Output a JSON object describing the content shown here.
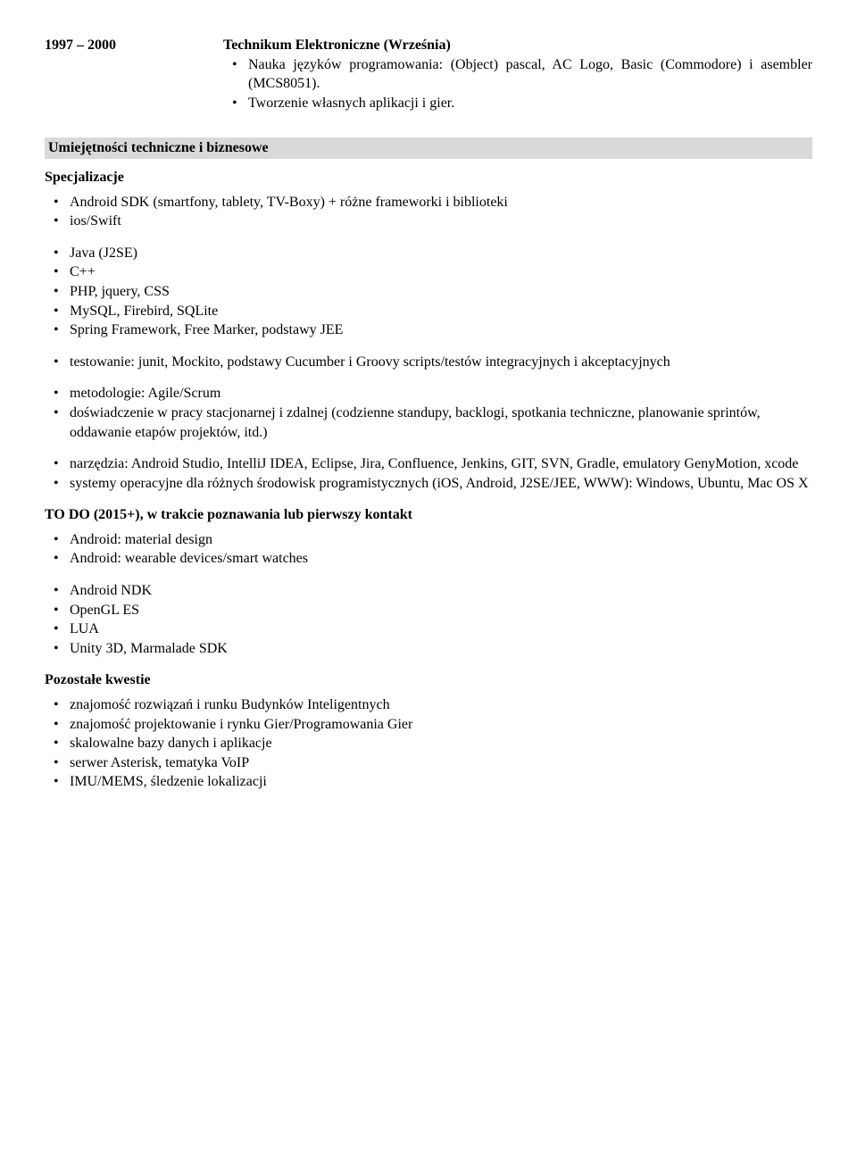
{
  "education": {
    "years": "1997 – 2000",
    "school": "Technikum Elektroniczne (Września)",
    "items": [
      "Nauka języków programowania: (Object) pascal, AC Logo, Basic (Commodore) i asembler (MCS8051).",
      "Tworzenie własnych aplikacji i gier."
    ]
  },
  "section_skills_header": "Umiejętności techniczne i biznesowe",
  "spec_header": "Specjalizacje",
  "spec_group1": [
    "Android SDK (smartfony, tablety, TV-Boxy) + różne frameworki i biblioteki",
    "ios/Swift"
  ],
  "spec_group2": [
    "Java (J2SE)",
    "C++",
    "PHP, jquery, CSS",
    "MySQL, Firebird, SQLite",
    "Spring Framework, Free Marker, podstawy JEE"
  ],
  "spec_group3": [
    "testowanie: junit, Mockito, podstawy Cucumber i Groovy scripts/testów integracyjnych i akceptacyjnych"
  ],
  "spec_group4": [
    "metodologie: Agile/Scrum",
    "doświadczenie w pracy stacjonarnej i zdalnej (codzienne standupy, backlogi, spotkania techniczne, planowanie sprintów, oddawanie etapów projektów, itd.)"
  ],
  "spec_group5": [
    "narzędzia: Android Studio, IntelliJ IDEA, Eclipse, Jira, Confluence, Jenkins, GIT, SVN, Gradle, emulatory GenyMotion, xcode",
    "systemy operacyjne dla różnych środowisk programistycznych (iOS, Android, J2SE/JEE, WWW): Windows, Ubuntu, Mac OS X"
  ],
  "todo_header": "TO DO (2015+), w trakcie poznawania lub pierwszy kontakt",
  "todo_group1": [
    "Android: material design",
    "Android: wearable devices/smart watches"
  ],
  "todo_group2": [
    "Android NDK",
    "OpenGL ES",
    "LUA",
    "Unity 3D, Marmalade SDK"
  ],
  "other_header": "Pozostałe kwestie",
  "other_items": [
    "znajomość rozwiązań i runku Budynków Inteligentnych",
    "znajomość projektowanie i rynku Gier/Programowania Gier",
    "skalowalne bazy danych i aplikacje",
    "serwer Asterisk, tematyka VoIP",
    "IMU/MEMS, śledzenie lokalizacji"
  ]
}
